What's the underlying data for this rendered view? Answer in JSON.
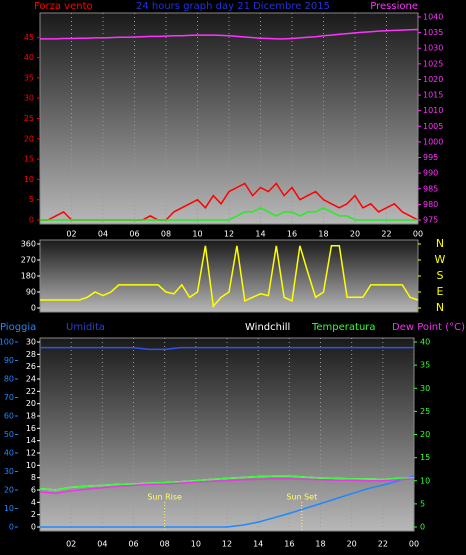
{
  "chart_data": [
    {
      "type": "line",
      "title": "24 hours graph day  21 Dicembre 2015",
      "x": [
        0,
        0.5,
        1,
        1.5,
        2,
        2.5,
        3,
        3.5,
        4,
        4.5,
        5,
        5.5,
        6,
        6.5,
        7,
        7.5,
        8,
        8.5,
        9,
        9.5,
        10,
        10.5,
        11,
        11.5,
        12,
        12.5,
        13,
        13.5,
        14,
        14.5,
        15,
        15.5,
        16,
        16.5,
        17,
        17.5,
        18,
        18.5,
        19,
        19.5,
        20,
        20.5,
        21,
        21.5,
        22,
        22.5,
        23,
        23.5,
        24
      ],
      "xlim": [
        0,
        24
      ],
      "xticks": [
        {
          "value": 2,
          "label": "02"
        },
        {
          "value": 4,
          "label": "04"
        },
        {
          "value": 6,
          "label": "06"
        },
        {
          "value": 8,
          "label": "08"
        },
        10,
        12,
        14,
        16,
        18,
        20,
        22,
        {
          "value": 24,
          "label": "00"
        }
      ],
      "ylim": [
        0,
        50
      ],
      "yticks": [
        0,
        5,
        10,
        15,
        20,
        25,
        30,
        35,
        40,
        45
      ],
      "y2lim": [
        975,
        1040
      ],
      "y2ticks": [
        975,
        980,
        985,
        990,
        995,
        1000,
        1005,
        1010,
        1015,
        1020,
        1025,
        1030,
        1035,
        1040
      ],
      "series": [
        {
          "name": "Forza vento",
          "color": "#ff0000",
          "values": [
            0,
            0,
            1,
            2,
            0,
            0,
            0,
            0,
            0,
            0,
            0,
            0,
            0,
            0,
            1,
            0,
            0,
            2,
            3,
            4,
            5,
            3,
            6,
            4,
            7,
            8,
            9,
            6,
            8,
            7,
            9,
            6,
            8,
            5,
            6,
            7,
            5,
            4,
            3,
            4,
            6,
            3,
            4,
            2,
            3,
            4,
            2,
            1,
            0
          ]
        },
        {
          "color": "#22ee22",
          "values": [
            0,
            0,
            0,
            0,
            0,
            0,
            0,
            0,
            0,
            0,
            0,
            0,
            0,
            0,
            0,
            0,
            0,
            0,
            0,
            0,
            0,
            0,
            0,
            0,
            0,
            1,
            2,
            2,
            3,
            2,
            1,
            2,
            2,
            1,
            2,
            2,
            3,
            2,
            1,
            1,
            0,
            0,
            0,
            0,
            0,
            0,
            0,
            0,
            0
          ]
        },
        {
          "name": "Pressione",
          "color": "#ff33ff",
          "axis": "y2",
          "values": [
            1033,
            1033,
            1033,
            1033.1,
            1033.1,
            1033.2,
            1033.2,
            1033.3,
            1033.3,
            1033.4,
            1033.5,
            1033.5,
            1033.6,
            1033.7,
            1033.8,
            1033.8,
            1033.9,
            1034,
            1034,
            1034.1,
            1034.2,
            1034.2,
            1034.2,
            1034.1,
            1034,
            1033.8,
            1033.6,
            1033.4,
            1033.2,
            1033.1,
            1033,
            1033,
            1033.1,
            1033.3,
            1033.5,
            1033.7,
            1034,
            1034.2,
            1034.5,
            1034.7,
            1034.9,
            1035.1,
            1035.3,
            1035.5,
            1035.6,
            1035.7,
            1035.8,
            1035.9,
            1036
          ]
        }
      ]
    },
    {
      "type": "line",
      "x": [
        0,
        0.5,
        1,
        1.5,
        2,
        2.5,
        3,
        3.5,
        4,
        4.5,
        5,
        5.5,
        6,
        6.5,
        7,
        7.5,
        8,
        8.5,
        9,
        9.5,
        10,
        10.5,
        11,
        11.5,
        12,
        12.5,
        13,
        13.5,
        14,
        14.5,
        15,
        15.5,
        16,
        16.5,
        17,
        17.5,
        18,
        18.5,
        19,
        19.5,
        20,
        20.5,
        21,
        21.5,
        22,
        22.5,
        23,
        23.5,
        24
      ],
      "xlim": [
        0,
        24
      ],
      "ylim": [
        0,
        360
      ],
      "yticks": [
        0,
        90,
        180,
        270,
        360
      ],
      "y2lim": [
        0,
        360
      ],
      "y2ticks": [
        {
          "value": 0,
          "label": "N"
        },
        {
          "value": 90,
          "label": "E"
        },
        {
          "value": 180,
          "label": "S"
        },
        {
          "value": 270,
          "label": "W"
        },
        {
          "value": 360,
          "label": "N"
        }
      ],
      "series": [
        {
          "color": "#ffff00",
          "values": [
            45,
            45,
            45,
            45,
            45,
            45,
            60,
            90,
            70,
            90,
            130,
            130,
            130,
            130,
            130,
            130,
            90,
            80,
            130,
            60,
            90,
            350,
            10,
            60,
            90,
            350,
            40,
            60,
            80,
            70,
            350,
            60,
            40,
            350,
            200,
            60,
            90,
            350,
            350,
            60,
            60,
            60,
            130,
            130,
            130,
            130,
            130,
            60,
            45
          ]
        }
      ]
    },
    {
      "type": "line",
      "x": [
        0,
        1,
        2,
        3,
        4,
        5,
        6,
        7,
        8,
        9,
        10,
        11,
        12,
        13,
        14,
        15,
        16,
        17,
        18,
        19,
        20,
        21,
        22,
        23,
        24
      ],
      "xlim": [
        0,
        24
      ],
      "xticks": [
        {
          "value": 2,
          "label": "02"
        },
        {
          "value": 4,
          "label": "04"
        },
        {
          "value": 6,
          "label": "06"
        },
        {
          "value": 8,
          "label": "08"
        },
        10,
        12,
        14,
        16,
        18,
        20,
        22,
        {
          "value": 24,
          "label": "00"
        }
      ],
      "ylim": [
        0,
        30
      ],
      "yticks": [
        0,
        2,
        4,
        6,
        8,
        10,
        12,
        14,
        16,
        18,
        20,
        22,
        24,
        26,
        28,
        30
      ],
      "y2lim": [
        0,
        40
      ],
      "y2ticks": [
        0,
        5,
        10,
        15,
        20,
        25,
        30,
        35,
        40
      ],
      "y3lim": [
        0,
        100
      ],
      "y3ticks": [
        0,
        10,
        20,
        30,
        40,
        50,
        60,
        70,
        80,
        90,
        100
      ],
      "series": [
        {
          "name": "Pioggia",
          "color": "#1e88ff",
          "values": [
            0,
            0,
            0,
            0,
            0,
            0,
            0,
            0,
            0,
            0,
            0,
            0,
            0,
            0.3,
            0.8,
            1.5,
            2.2,
            3,
            3.8,
            4.6,
            5.4,
            6.2,
            6.8,
            7.5,
            8.3
          ]
        },
        {
          "name": "Umidita",
          "color": "#2a55ee",
          "axis": "y3",
          "values": [
            97,
            97,
            97,
            97,
            97,
            97,
            97,
            96,
            96,
            97,
            97,
            97,
            97,
            97,
            97,
            97,
            97,
            97,
            97,
            97,
            97,
            97,
            97,
            97,
            97
          ]
        },
        {
          "name": "Windchill",
          "color": "#ffffff",
          "axis": "y2",
          "values": [
            8.3,
            8.0,
            8.6,
            8.8,
            9.0,
            9.2,
            9.3,
            9.5,
            9.6,
            9.8,
            10.0,
            10.3,
            10.5,
            10.7,
            10.9,
            11.0,
            11.0,
            10.8,
            10.6,
            10.5,
            10.4,
            10.4,
            10.3,
            10.5,
            10.6
          ]
        },
        {
          "name": "Temperatura",
          "color": "#33ff33",
          "axis": "y2",
          "values": [
            8.3,
            8.0,
            8.6,
            8.8,
            9.0,
            9.2,
            9.3,
            9.5,
            9.6,
            9.8,
            10.0,
            10.3,
            10.5,
            10.7,
            10.9,
            11.0,
            11.0,
            10.8,
            10.6,
            10.5,
            10.4,
            10.4,
            10.3,
            10.5,
            10.6
          ]
        },
        {
          "name": "Dew Point (°C)",
          "color": "#ee33ee",
          "axis": "y2",
          "values": [
            7.6,
            7.3,
            7.8,
            8.2,
            8.5,
            8.8,
            9.0,
            9.2,
            9.3,
            9.5,
            9.7,
            9.9,
            10.0,
            10.2,
            10.3,
            10.4,
            10.4,
            10.3,
            10.2,
            10.1,
            10.1,
            10.0,
            10.0,
            10.2,
            10.4
          ]
        }
      ],
      "annotations": [
        {
          "text": "Sun Rise",
          "x": 8
        },
        {
          "text": "Sun Set",
          "x": 16.8
        }
      ]
    }
  ]
}
